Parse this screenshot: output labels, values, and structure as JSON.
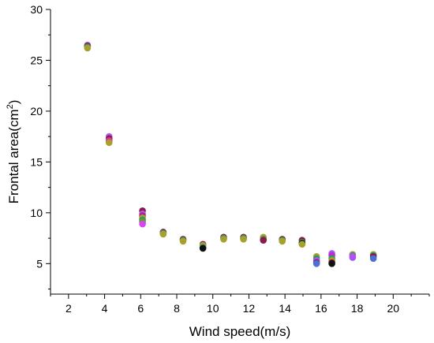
{
  "chart_data": {
    "type": "scatter",
    "xlabel": "Wind speed(m/s)",
    "ylabel_main": "Frontal area(cm",
    "ylabel_sup": "2",
    "ylabel_close": ")",
    "xlim": [
      1,
      22
    ],
    "ylim": [
      2,
      30
    ],
    "xticks": [
      2,
      4,
      6,
      8,
      10,
      12,
      14,
      16,
      18,
      20
    ],
    "yticks": [
      5,
      10,
      15,
      20,
      25,
      30
    ],
    "grid": false,
    "legend": "none",
    "point_groups": [
      {
        "x": 3.05,
        "values": [
          26.5,
          26.4,
          26.3,
          26.2
        ],
        "colors": [
          "#a855f7",
          "#8b1a4a",
          "#2a9d5c",
          "#a8a02a"
        ]
      },
      {
        "x": 4.25,
        "values": [
          17.5,
          17.3,
          17.1,
          16.9
        ],
        "colors": [
          "#a855f7",
          "#8b1a4a",
          "#e0359b",
          "#a8a02a"
        ]
      },
      {
        "x": 6.1,
        "values": [
          10.2,
          9.9,
          9.7,
          9.5,
          9.3,
          9.1,
          8.9
        ],
        "colors": [
          "#8b1a4a",
          "#a855f7",
          "#c2187e",
          "#a8a02a",
          "#2a9d5c",
          "#6c9a2a",
          "#d946ef"
        ]
      },
      {
        "x": 7.25,
        "values": [
          8.1,
          8.0,
          7.9
        ],
        "colors": [
          "#8b1a4a",
          "#2a9d5c",
          "#a8a02a"
        ]
      },
      {
        "x": 8.35,
        "values": [
          7.4,
          7.3,
          7.2
        ],
        "colors": [
          "#8b1a4a",
          "#2a9d5c",
          "#a8a02a"
        ]
      },
      {
        "x": 9.45,
        "values": [
          6.9,
          6.8,
          6.6,
          6.5
        ],
        "colors": [
          "#8b1a4a",
          "#a8a02a",
          "#2a9d5c",
          "#111111"
        ]
      },
      {
        "x": 10.6,
        "values": [
          7.6,
          7.5,
          7.4
        ],
        "colors": [
          "#8b1a4a",
          "#2a9d5c",
          "#a8a02a"
        ]
      },
      {
        "x": 11.7,
        "values": [
          7.6,
          7.5,
          7.4
        ],
        "colors": [
          "#8b1a4a",
          "#2a9d5c",
          "#a8a02a"
        ]
      },
      {
        "x": 12.8,
        "values": [
          7.6,
          7.4,
          7.3
        ],
        "colors": [
          "#a8a02a",
          "#2a9d5c",
          "#8b1a4a"
        ]
      },
      {
        "x": 13.85,
        "values": [
          7.4,
          7.3,
          7.2
        ],
        "colors": [
          "#8b1a4a",
          "#2a9d5c",
          "#a8a02a"
        ]
      },
      {
        "x": 14.95,
        "values": [
          7.3,
          7.1,
          7.0,
          6.9
        ],
        "colors": [
          "#8b1a4a",
          "#2a9d5c",
          "#111111",
          "#a8a02a"
        ]
      },
      {
        "x": 15.75,
        "values": [
          5.7,
          5.5,
          5.3,
          5.1,
          5.0
        ],
        "colors": [
          "#a8a02a",
          "#2a9d5c",
          "#a855f7",
          "#8b1a4a",
          "#4b6fd6"
        ]
      },
      {
        "x": 16.6,
        "values": [
          6.0,
          5.8,
          5.5,
          5.3,
          5.1,
          5.0
        ],
        "colors": [
          "#a855f7",
          "#c026d3",
          "#2a9d5c",
          "#a8a02a",
          "#8b1a4a",
          "#111111"
        ]
      },
      {
        "x": 17.75,
        "values": [
          5.9,
          5.8,
          5.7,
          5.6
        ],
        "colors": [
          "#a8a02a",
          "#2a9d5c",
          "#d946ef",
          "#a855f7"
        ]
      },
      {
        "x": 18.9,
        "values": [
          5.9,
          5.8,
          5.7,
          5.5
        ],
        "colors": [
          "#a8a02a",
          "#2a9d5c",
          "#8b1a4a",
          "#4b6fd6"
        ]
      }
    ]
  }
}
